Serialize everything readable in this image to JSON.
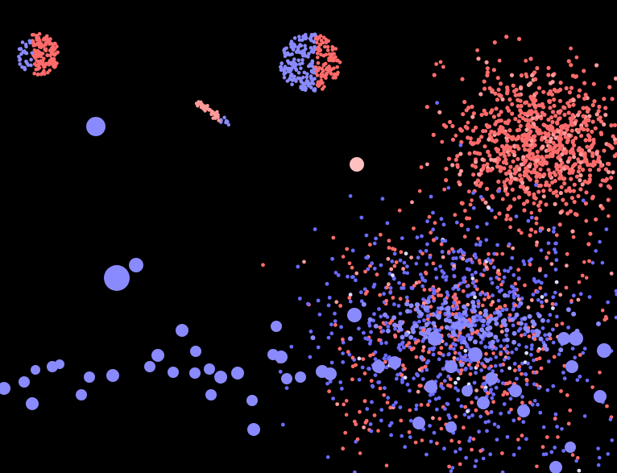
{
  "scene": {
    "background_color": "#000000",
    "palette": {
      "red": "#ff6b6b",
      "red_light": "#ff9a9a",
      "pink_pale": "#ffc0c0",
      "blue": "#6b6bff",
      "blue_light": "#8a8aff",
      "white_blue": "#dcdcff"
    }
  }
}
